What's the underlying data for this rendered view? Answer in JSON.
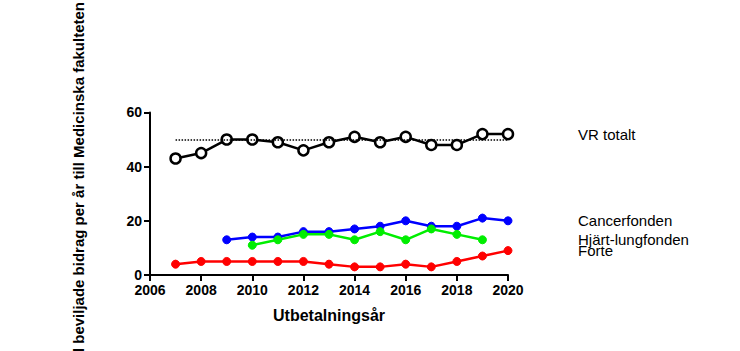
{
  "chart_data": {
    "type": "line",
    "x_label": "Utbetalningsår",
    "y_label": "Antal beviljade bidrag per år till Medicinska fakulteten",
    "x": [
      2007,
      2008,
      2009,
      2010,
      2011,
      2012,
      2013,
      2014,
      2015,
      2016,
      2017,
      2018,
      2019,
      2020
    ],
    "series": [
      {
        "name": "VR totalt",
        "color": "#000000",
        "marker": "open_circle",
        "values": [
          43,
          45,
          50,
          50,
          49,
          46,
          49,
          51,
          49,
          51,
          48,
          48,
          52,
          52
        ]
      },
      {
        "name": "Cancerfonden",
        "color": "#0000ff",
        "marker": "circle",
        "values": [
          null,
          null,
          13,
          14,
          14,
          16,
          16,
          17,
          18,
          20,
          18,
          18,
          21,
          20
        ]
      },
      {
        "name": "Hjärt-lungfonden",
        "color": "#00ee00",
        "marker": "circle",
        "values": [
          null,
          null,
          null,
          11,
          13,
          15,
          15,
          13,
          16,
          13,
          17,
          15,
          13,
          null
        ]
      },
      {
        "name": "Forte",
        "color": "#ff0000",
        "marker": "circle",
        "values": [
          4,
          5,
          5,
          5,
          5,
          5,
          4,
          3,
          3,
          4,
          3,
          5,
          7,
          9
        ]
      }
    ],
    "reference_lines": [
      {
        "y": 50,
        "x": [
          2007,
          2020
        ],
        "line_style": "dotted",
        "color": "#000000"
      }
    ],
    "xlim": [
      2006,
      2020
    ],
    "xticks": [
      2006,
      2008,
      2010,
      2012,
      2014,
      2016,
      2018,
      2020
    ],
    "ylim": [
      0,
      60
    ],
    "yticks": [
      0,
      20,
      40,
      60
    ],
    "grid": false,
    "legend": "right"
  }
}
